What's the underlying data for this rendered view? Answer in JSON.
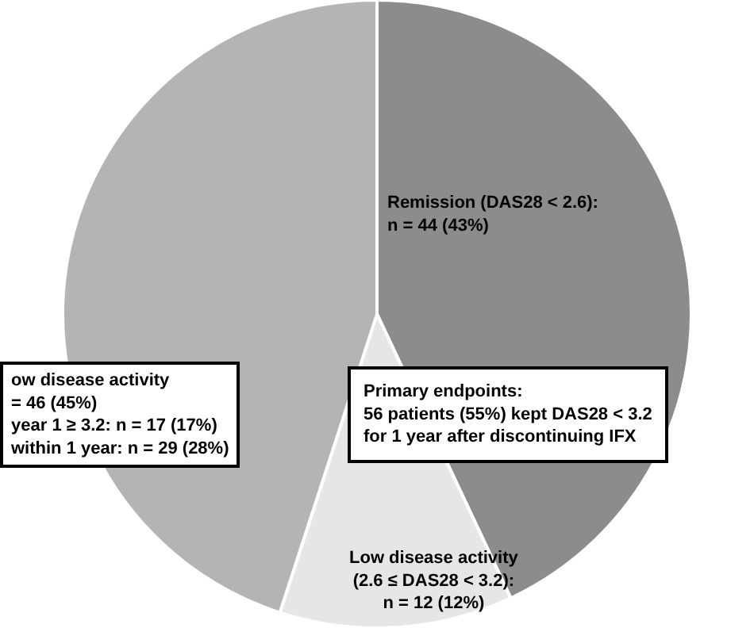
{
  "chart_data": {
    "type": "pie",
    "categories": [
      "Remission (DAS28 < 2.6):\nn = 44 (43%)",
      "Low disease activity\n(2.6 ≤ DAS28 < 3.2):\nn = 12 (12%)",
      "ow disease activity\n= 46 (45%)\nyear 1 ≥ 3.2: n = 17 (17%)\nwithin 1 year: n = 29 (28%)"
    ],
    "values": [
      43,
      12,
      45
    ],
    "colors": [
      "#8c8c8c",
      "#e6e6e6",
      "#b4b4b4"
    ],
    "annotations": [
      "Primary endpoints:\n56 patients (55%) kept DAS28 < 3.2\nfor 1 year after discontinuing IFX"
    ],
    "legend": false
  }
}
